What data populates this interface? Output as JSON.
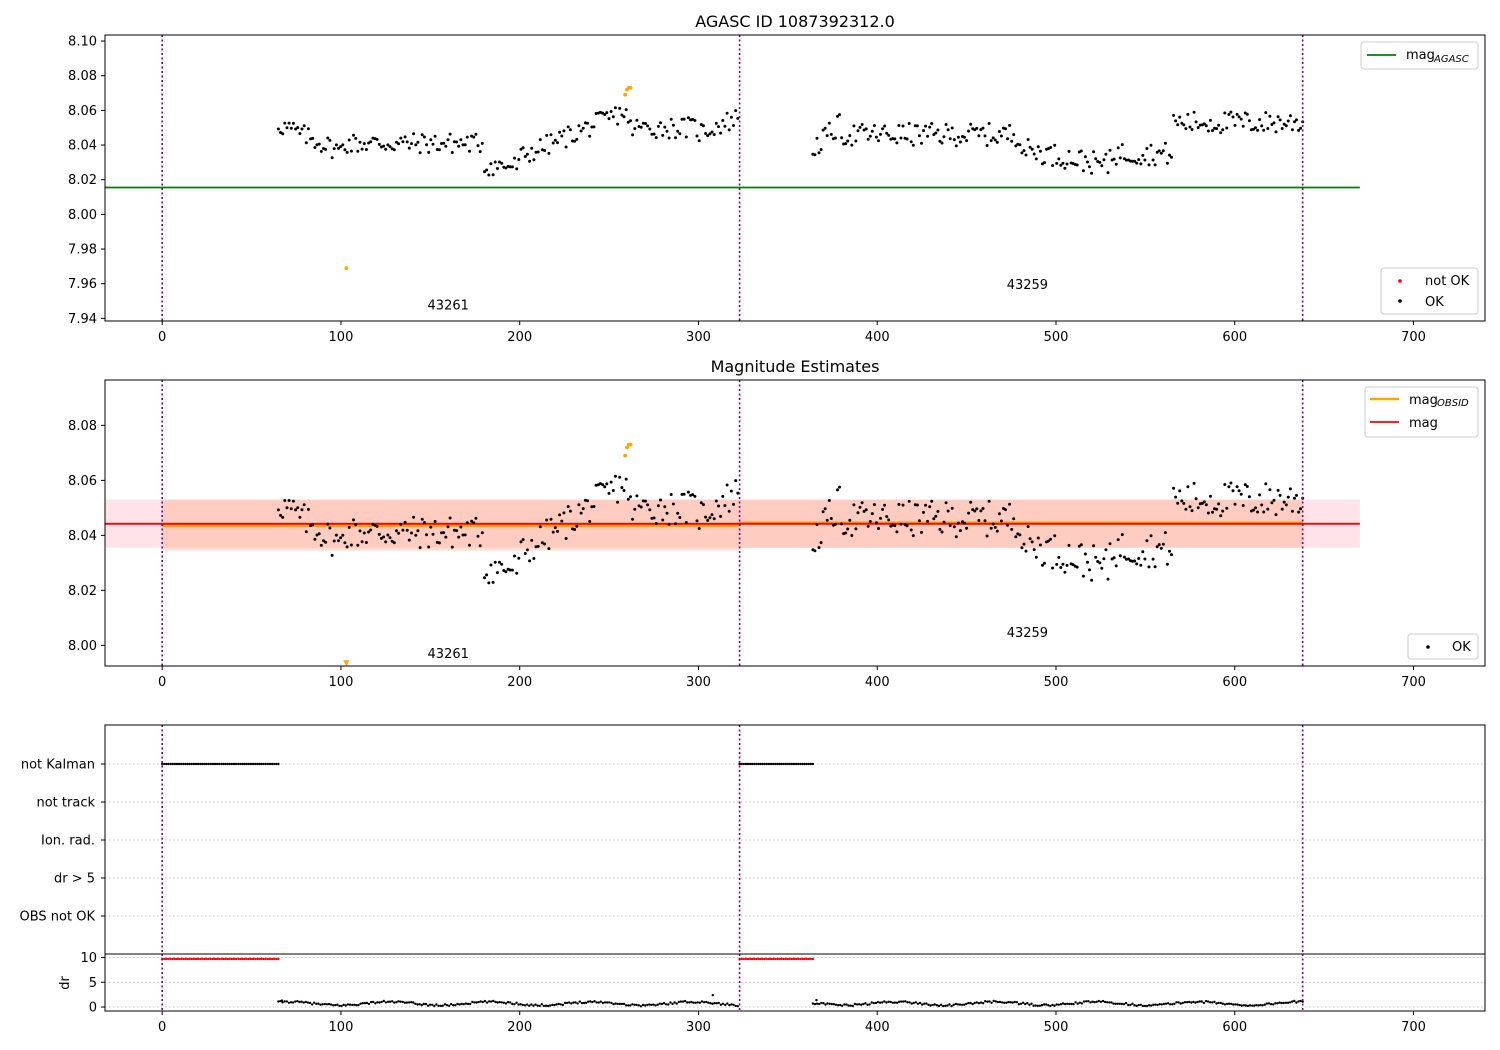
{
  "figure": {
    "colors": {
      "ok": "#000000",
      "not_ok": "#ff0000",
      "agasc": "#008000",
      "obsid": "#ffa500",
      "mag": "#ff0000",
      "band_pink": "#ffc0cb",
      "band_orange": "#ffa07a",
      "vline": "#800080"
    }
  },
  "chart_data": [
    {
      "id": "agasc",
      "type": "scatter",
      "title": "AGASC ID 1087392312.0",
      "xlabel": "",
      "ylabel": "",
      "xlim": [
        -32,
        740
      ],
      "ylim": [
        7.9385,
        8.1035
      ],
      "x_ticks": [
        0,
        100,
        200,
        300,
        400,
        500,
        600,
        700
      ],
      "y_ticks": [
        7.94,
        7.96,
        7.98,
        8.0,
        8.02,
        8.04,
        8.06,
        8.08,
        8.1
      ],
      "y_tick_labels": [
        "7.94",
        "7.96",
        "7.98",
        "8.00",
        "8.02",
        "8.04",
        "8.06",
        "8.08",
        "8.10"
      ],
      "obs_boundaries": [
        0,
        323,
        638
      ],
      "obs_labels": [
        {
          "x": 160,
          "y": 7.945,
          "text": "43261"
        },
        {
          "x": 484,
          "y": 7.957,
          "text": "43259"
        }
      ],
      "hlines": [
        {
          "name": "mag_AGASC",
          "y": 8.0155,
          "xmin": -32,
          "xmax": 670,
          "color": "agasc"
        }
      ],
      "series": [
        {
          "name": "OK",
          "color": "ok",
          "segments": [
            {
              "x0": 65,
              "x1": 322,
              "n": 215,
              "pattern": "obs1"
            },
            {
              "x0": 364,
              "x1": 638,
              "n": 240,
              "pattern": "obs2"
            }
          ]
        },
        {
          "name": "not OK",
          "color": "obsid",
          "points": [
            [
              103,
              7.969
            ],
            [
              259,
              8.069
            ],
            [
              260,
              8.072
            ],
            [
              261,
              8.073
            ],
            [
              262,
              8.073
            ]
          ]
        }
      ],
      "legend_top": {
        "entries": [
          {
            "label": "mag",
            "sub": "AGASC",
            "type": "line",
            "color": "agasc"
          }
        ]
      },
      "legend_bottom": {
        "entries": [
          {
            "label": "not OK",
            "type": "marker",
            "color": "not_ok"
          },
          {
            "label": "OK",
            "type": "marker",
            "color": "ok"
          }
        ]
      }
    },
    {
      "id": "estimates",
      "type": "scatter",
      "title": "Magnitude Estimates",
      "xlabel": "",
      "ylabel": "",
      "xlim": [
        -32,
        740
      ],
      "ylim": [
        7.9925,
        8.0965
      ],
      "x_ticks": [
        0,
        100,
        200,
        300,
        400,
        500,
        600,
        700
      ],
      "y_ticks": [
        8.0,
        8.02,
        8.04,
        8.06,
        8.08
      ],
      "y_tick_labels": [
        "8.00",
        "8.02",
        "8.04",
        "8.06",
        "8.08"
      ],
      "obs_boundaries": [
        0,
        323,
        638
      ],
      "obs_labels": [
        {
          "x": 160,
          "y": 7.9955,
          "text": "43261"
        },
        {
          "x": 484,
          "y": 8.003,
          "text": "43259"
        }
      ],
      "bands": [
        {
          "x0": -32,
          "x1": 670,
          "y0": 8.0355,
          "y1": 8.053,
          "color": "band_pink",
          "opacity": 0.45
        },
        {
          "x0": 0,
          "x1": 323,
          "y0": 8.0345,
          "y1": 8.053,
          "color": "band_orange",
          "opacity": 0.35
        },
        {
          "x0": 323,
          "x1": 638,
          "y0": 8.0355,
          "y1": 8.053,
          "color": "band_orange",
          "opacity": 0.35
        }
      ],
      "hlines": [
        {
          "name": "mag_OBSID",
          "y": 8.0436,
          "xmin": 0,
          "xmax": 323,
          "color": "obsid",
          "width": 3
        },
        {
          "name": "mag_OBSID",
          "y": 8.0445,
          "xmin": 323,
          "xmax": 638,
          "color": "obsid",
          "width": 3
        },
        {
          "name": "mag",
          "y": 8.0442,
          "xmin": -32,
          "xmax": 670,
          "color": "mag",
          "width": 1.8
        }
      ],
      "series": [
        {
          "name": "OK",
          "color": "ok",
          "segments": [
            {
              "x0": 65,
              "x1": 322,
              "n": 215,
              "pattern": "obs1"
            },
            {
              "x0": 364,
              "x1": 638,
              "n": 240,
              "pattern": "obs2"
            }
          ]
        },
        {
          "name": "outlier",
          "color": "obsid",
          "points": [
            [
              259,
              8.069
            ],
            [
              260,
              8.072
            ],
            [
              261,
              8.073
            ],
            [
              262,
              8.073
            ]
          ]
        },
        {
          "name": "clipped",
          "color": "obsid",
          "markers": "triangle",
          "points": [
            [
              103,
              7.9935
            ]
          ]
        }
      ],
      "legend_top": {
        "entries": [
          {
            "label": "mag",
            "sub": "OBSID",
            "type": "line",
            "color": "obsid"
          },
          {
            "label": "mag",
            "sub": "",
            "type": "line",
            "color": "mag"
          }
        ]
      },
      "legend_bottom": {
        "entries": [
          {
            "label": "OK",
            "type": "marker",
            "color": "ok"
          }
        ]
      }
    },
    {
      "id": "flags",
      "type": "scatter",
      "title": "",
      "xlim": [
        -32,
        740
      ],
      "categories": [
        "not Kalman",
        "not track",
        "Ion. rad.",
        "dr > 5",
        "OBS not OK"
      ],
      "obs_boundaries": [
        0,
        323,
        638
      ],
      "flag_series": [
        {
          "category": "not Kalman",
          "ranges": [
            [
              0,
              65
            ],
            [
              323,
              364
            ]
          ],
          "color": "ok"
        }
      ]
    },
    {
      "id": "dr",
      "type": "scatter",
      "title": "",
      "ylabel": "dr",
      "xlim": [
        -32,
        740
      ],
      "ylim": [
        -0.8,
        10.7
      ],
      "x_ticks": [
        0,
        100,
        200,
        300,
        400,
        500,
        600,
        700
      ],
      "x_tick_labels": [
        "0",
        "100",
        "200",
        "300",
        "400",
        "500",
        "600",
        "700"
      ],
      "y_ticks": [
        0,
        5,
        10
      ],
      "y_tick_labels": [
        "0",
        "5",
        "10"
      ],
      "obs_boundaries": [
        0,
        323,
        638
      ],
      "series": [
        {
          "name": "dr clipped",
          "color": "not_ok",
          "ranges": [
            [
              0,
              65
            ],
            [
              323,
              364
            ]
          ],
          "y": 9.7
        },
        {
          "name": "dr",
          "color": "ok",
          "ranges": [
            [
              65,
              322
            ],
            [
              364,
              638
            ]
          ],
          "y": 0.7
        },
        {
          "name": "dr spike",
          "color": "ok",
          "points": [
            [
              308,
              2.4
            ],
            [
              67,
              1.3
            ],
            [
              366,
              1.4
            ]
          ]
        }
      ]
    }
  ]
}
